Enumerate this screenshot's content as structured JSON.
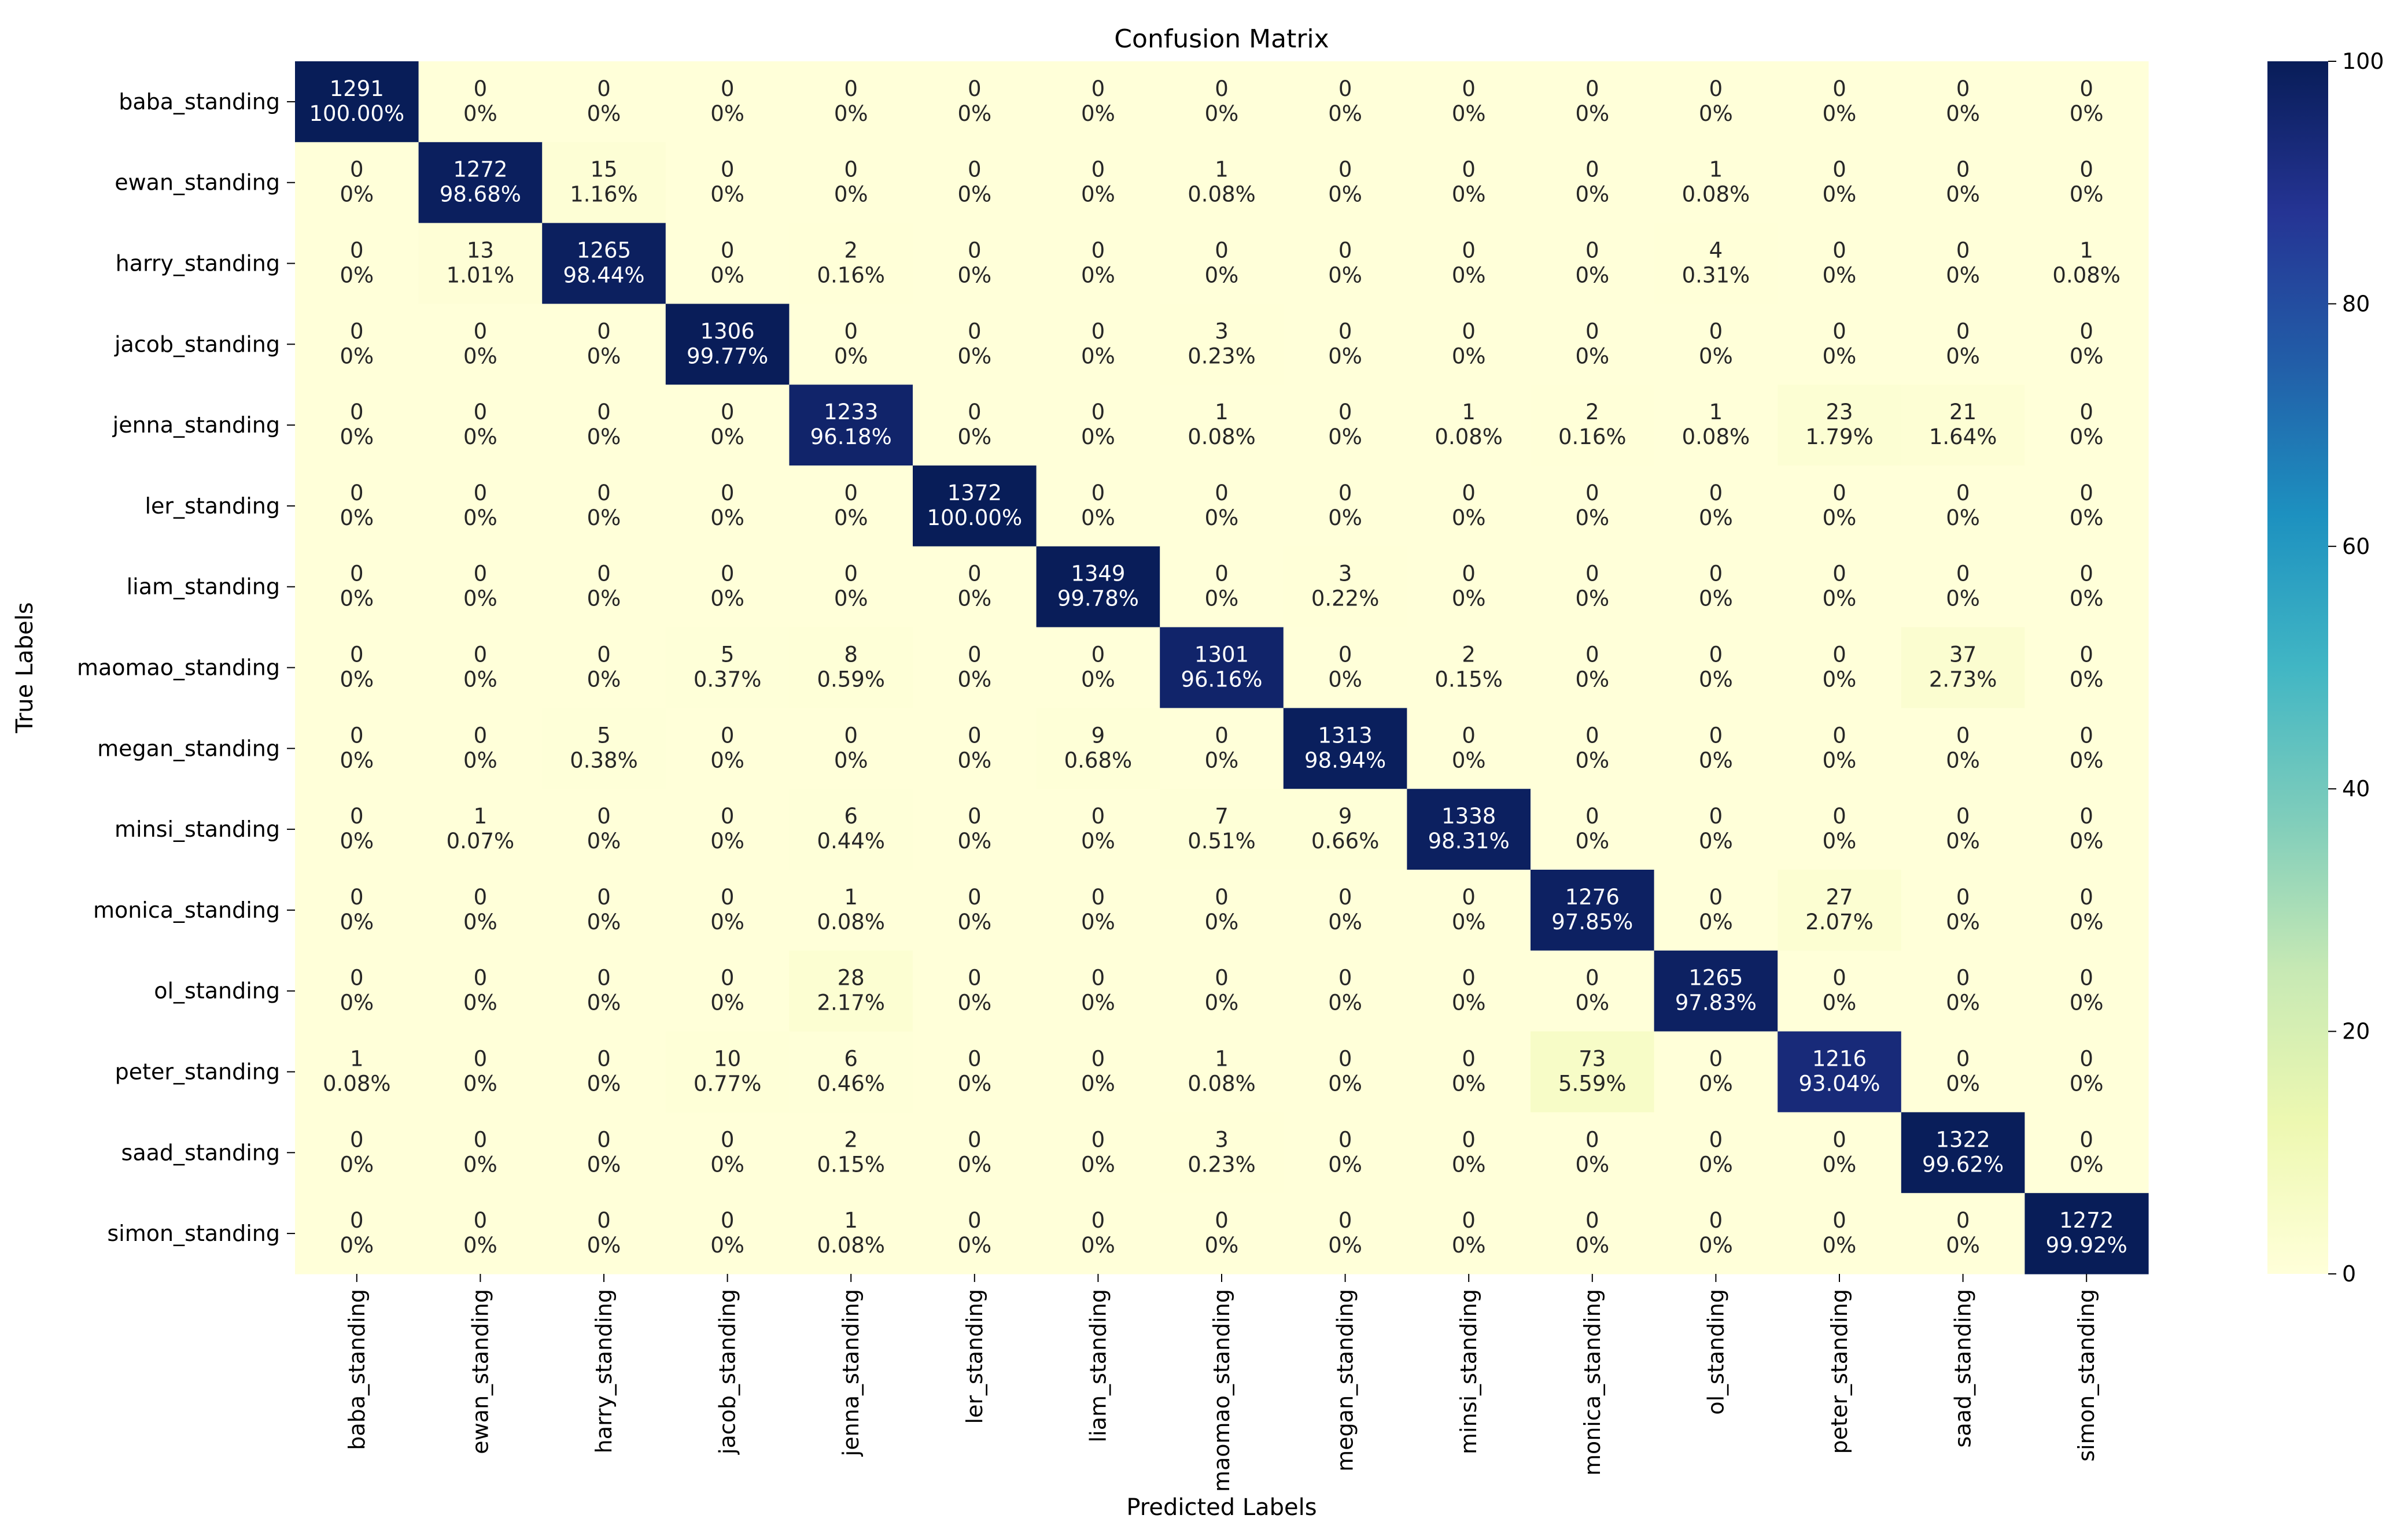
{
  "chart_data": {
    "type": "heatmap",
    "title": "Confusion Matrix",
    "xlabel": "Predicted Labels",
    "ylabel": "True Labels",
    "row_labels": [
      "baba_standing",
      "ewan_standing",
      "harry_standing",
      "jacob_standing",
      "jenna_standing",
      "ler_standing",
      "liam_standing",
      "maomao_standing",
      "megan_standing",
      "minsi_standing",
      "monica_standing",
      "ol_standing",
      "peter_standing",
      "saad_standing",
      "simon_standing"
    ],
    "col_labels": [
      "baba_standing",
      "ewan_standing",
      "harry_standing",
      "jacob_standing",
      "jenna_standing",
      "ler_standing",
      "liam_standing",
      "maomao_standing",
      "megan_standing",
      "minsi_standing",
      "monica_standing",
      "ol_standing",
      "peter_standing",
      "saad_standing",
      "simon_standing"
    ],
    "counts": [
      [
        1291,
        0,
        0,
        0,
        0,
        0,
        0,
        0,
        0,
        0,
        0,
        0,
        0,
        0,
        0
      ],
      [
        0,
        1272,
        15,
        0,
        0,
        0,
        0,
        1,
        0,
        0,
        0,
        1,
        0,
        0,
        0
      ],
      [
        0,
        13,
        1265,
        0,
        2,
        0,
        0,
        0,
        0,
        0,
        0,
        4,
        0,
        0,
        1
      ],
      [
        0,
        0,
        0,
        1306,
        0,
        0,
        0,
        3,
        0,
        0,
        0,
        0,
        0,
        0,
        0
      ],
      [
        0,
        0,
        0,
        0,
        1233,
        0,
        0,
        1,
        0,
        1,
        2,
        1,
        23,
        21,
        0
      ],
      [
        0,
        0,
        0,
        0,
        0,
        1372,
        0,
        0,
        0,
        0,
        0,
        0,
        0,
        0,
        0
      ],
      [
        0,
        0,
        0,
        0,
        0,
        0,
        1349,
        0,
        3,
        0,
        0,
        0,
        0,
        0,
        0
      ],
      [
        0,
        0,
        0,
        5,
        8,
        0,
        0,
        1301,
        0,
        2,
        0,
        0,
        0,
        37,
        0
      ],
      [
        0,
        0,
        5,
        0,
        0,
        0,
        9,
        0,
        1313,
        0,
        0,
        0,
        0,
        0,
        0
      ],
      [
        0,
        1,
        0,
        0,
        6,
        0,
        0,
        7,
        9,
        1338,
        0,
        0,
        0,
        0,
        0
      ],
      [
        0,
        0,
        0,
        0,
        1,
        0,
        0,
        0,
        0,
        0,
        1276,
        0,
        27,
        0,
        0
      ],
      [
        0,
        0,
        0,
        0,
        28,
        0,
        0,
        0,
        0,
        0,
        0,
        1265,
        0,
        0,
        0
      ],
      [
        1,
        0,
        0,
        10,
        6,
        0,
        0,
        1,
        0,
        0,
        73,
        0,
        1216,
        0,
        0
      ],
      [
        0,
        0,
        0,
        0,
        2,
        0,
        0,
        3,
        0,
        0,
        0,
        0,
        0,
        1322,
        0
      ],
      [
        0,
        0,
        0,
        0,
        1,
        0,
        0,
        0,
        0,
        0,
        0,
        0,
        0,
        0,
        1272
      ]
    ],
    "percent_labels": [
      [
        "100.00%",
        "0%",
        "0%",
        "0%",
        "0%",
        "0%",
        "0%",
        "0%",
        "0%",
        "0%",
        "0%",
        "0%",
        "0%",
        "0%",
        "0%"
      ],
      [
        "0%",
        "98.68%",
        "1.16%",
        "0%",
        "0%",
        "0%",
        "0%",
        "0.08%",
        "0%",
        "0%",
        "0%",
        "0.08%",
        "0%",
        "0%",
        "0%"
      ],
      [
        "0%",
        "1.01%",
        "98.44%",
        "0%",
        "0.16%",
        "0%",
        "0%",
        "0%",
        "0%",
        "0%",
        "0%",
        "0.31%",
        "0%",
        "0%",
        "0.08%"
      ],
      [
        "0%",
        "0%",
        "0%",
        "99.77%",
        "0%",
        "0%",
        "0%",
        "0.23%",
        "0%",
        "0%",
        "0%",
        "0%",
        "0%",
        "0%",
        "0%"
      ],
      [
        "0%",
        "0%",
        "0%",
        "0%",
        "96.18%",
        "0%",
        "0%",
        "0.08%",
        "0%",
        "0.08%",
        "0.16%",
        "0.08%",
        "1.79%",
        "1.64%",
        "0%"
      ],
      [
        "0%",
        "0%",
        "0%",
        "0%",
        "0%",
        "100.00%",
        "0%",
        "0%",
        "0%",
        "0%",
        "0%",
        "0%",
        "0%",
        "0%",
        "0%"
      ],
      [
        "0%",
        "0%",
        "0%",
        "0%",
        "0%",
        "0%",
        "99.78%",
        "0%",
        "0.22%",
        "0%",
        "0%",
        "0%",
        "0%",
        "0%",
        "0%"
      ],
      [
        "0%",
        "0%",
        "0%",
        "0.37%",
        "0.59%",
        "0%",
        "0%",
        "96.16%",
        "0%",
        "0.15%",
        "0%",
        "0%",
        "0%",
        "2.73%",
        "0%"
      ],
      [
        "0%",
        "0%",
        "0.38%",
        "0%",
        "0%",
        "0%",
        "0.68%",
        "0%",
        "98.94%",
        "0%",
        "0%",
        "0%",
        "0%",
        "0%",
        "0%"
      ],
      [
        "0%",
        "0.07%",
        "0%",
        "0%",
        "0.44%",
        "0%",
        "0%",
        "0.51%",
        "0.66%",
        "98.31%",
        "0%",
        "0%",
        "0%",
        "0%",
        "0%"
      ],
      [
        "0%",
        "0%",
        "0%",
        "0%",
        "0.08%",
        "0%",
        "0%",
        "0%",
        "0%",
        "0%",
        "97.85%",
        "0%",
        "2.07%",
        "0%",
        "0%"
      ],
      [
        "0%",
        "0%",
        "0%",
        "0%",
        "2.17%",
        "0%",
        "0%",
        "0%",
        "0%",
        "0%",
        "0%",
        "97.83%",
        "0%",
        "0%",
        "0%"
      ],
      [
        "0.08%",
        "0%",
        "0%",
        "0.77%",
        "0.46%",
        "0%",
        "0%",
        "0.08%",
        "0%",
        "0%",
        "5.59%",
        "0%",
        "93.04%",
        "0%",
        "0%"
      ],
      [
        "0%",
        "0%",
        "0%",
        "0%",
        "0.15%",
        "0%",
        "0%",
        "0.23%",
        "0%",
        "0%",
        "0%",
        "0%",
        "0%",
        "99.62%",
        "0%"
      ],
      [
        "0%",
        "0%",
        "0%",
        "0%",
        "0.08%",
        "0%",
        "0%",
        "0%",
        "0%",
        "0%",
        "0%",
        "0%",
        "0%",
        "0%",
        "99.92%"
      ]
    ],
    "color_range": [
      0,
      100
    ],
    "colormap": "YlGnBu",
    "colorbar_ticks": [
      "0",
      "20",
      "40",
      "60",
      "80",
      "100"
    ],
    "grid": false
  }
}
